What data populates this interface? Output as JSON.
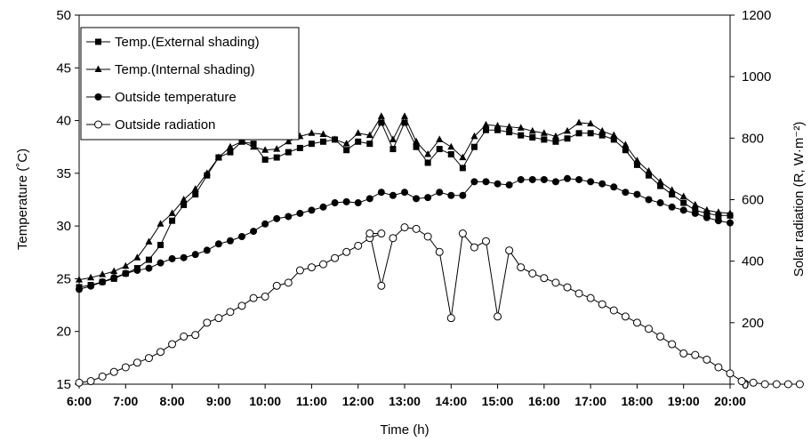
{
  "chart_data": {
    "type": "line",
    "xlabel": "Time (h)",
    "ylabel_left": "Temperature (˚C)",
    "ylabel_right": "Solar radiation (R, W·m⁻²)",
    "ylim_left": [
      15,
      50
    ],
    "ylim_right": [
      0,
      1200
    ],
    "yticks_left": [
      15,
      20,
      25,
      30,
      35,
      40,
      45,
      50
    ],
    "yticks_right": [
      0,
      200,
      400,
      600,
      800,
      1000,
      1200
    ],
    "x_ticks": [
      "6:00",
      "7:00",
      "8:00",
      "9:00",
      "10:00",
      "11:00",
      "12:00",
      "13:00",
      "14:00",
      "15:00",
      "16:00",
      "17:00",
      "18:00",
      "19:00",
      "20:00"
    ],
    "grid": false,
    "legend_position": "top-left",
    "x_start": "6:00",
    "x_interval_minutes": 15,
    "series": [
      {
        "name": "Temp.(External shading)",
        "axis": "left",
        "marker": "square-filled",
        "values": [
          24.2,
          24.4,
          24.7,
          25.0,
          25.5,
          26.0,
          26.8,
          28.2,
          30.5,
          32.0,
          33.0,
          34.8,
          36.5,
          37.0,
          38.0,
          37.8,
          36.3,
          36.5,
          37.0,
          37.4,
          37.8,
          38.0,
          38.2,
          37.2,
          38.0,
          37.8,
          39.8,
          37.3,
          39.8,
          37.5,
          36.0,
          37.3,
          36.8,
          35.5,
          37.5,
          39.1,
          39.1,
          38.9,
          38.6,
          38.4,
          38.2,
          38.0,
          38.3,
          38.8,
          38.8,
          38.6,
          38.2,
          37.2,
          35.8,
          34.8,
          33.8,
          33.0,
          32.2,
          31.5,
          31.2,
          31.0,
          31.0
        ]
      },
      {
        "name": "Temp.(Internal shading)",
        "axis": "left",
        "marker": "triangle-filled",
        "values": [
          24.9,
          25.1,
          25.4,
          25.7,
          26.2,
          27.0,
          28.5,
          30.2,
          31.2,
          32.5,
          33.5,
          35.0,
          36.5,
          37.5,
          38.0,
          37.5,
          37.2,
          37.3,
          38.0,
          38.5,
          38.8,
          38.7,
          38.2,
          37.8,
          38.8,
          38.6,
          40.4,
          38.2,
          40.4,
          38.0,
          36.8,
          38.2,
          37.5,
          36.5,
          38.5,
          39.6,
          39.5,
          39.4,
          39.3,
          39.0,
          38.8,
          38.5,
          39.0,
          39.8,
          39.7,
          39.0,
          38.6,
          37.7,
          36.2,
          35.2,
          34.2,
          33.4,
          32.8,
          32.0,
          31.5,
          31.3,
          31.2
        ]
      },
      {
        "name": "Outside temperature",
        "axis": "left",
        "marker": "circle-filled",
        "values": [
          24.0,
          24.3,
          24.7,
          25.1,
          25.5,
          25.8,
          26.0,
          26.5,
          26.9,
          27.0,
          27.3,
          27.7,
          28.3,
          28.6,
          29.0,
          29.5,
          30.2,
          30.7,
          30.9,
          31.2,
          31.5,
          31.8,
          32.2,
          32.3,
          32.2,
          32.6,
          33.2,
          32.9,
          33.2,
          32.6,
          32.7,
          33.2,
          32.9,
          32.9,
          34.2,
          34.2,
          34.0,
          33.9,
          34.4,
          34.4,
          34.4,
          34.2,
          34.5,
          34.4,
          34.2,
          34.0,
          33.7,
          33.2,
          33.0,
          32.5,
          32.2,
          31.8,
          31.5,
          31.2,
          30.8,
          30.5,
          30.3
        ]
      },
      {
        "name": "Outside radiation",
        "axis": "right",
        "marker": "circle-open",
        "values": [
          5,
          10,
          25,
          40,
          55,
          70,
          85,
          105,
          130,
          155,
          160,
          200,
          215,
          235,
          255,
          280,
          285,
          320,
          330,
          370,
          380,
          390,
          410,
          430,
          450,
          475,
          490,
          490,
          320,
          475,
          510,
          505,
          480,
          430,
          215,
          490,
          445,
          465,
          220,
          435,
          380,
          360,
          345,
          330,
          315,
          295,
          280,
          260,
          240,
          220,
          200,
          180,
          155,
          130,
          100,
          95,
          80,
          55,
          35,
          10,
          5,
          0,
          0,
          0,
          0
        ],
        "x_minutes": [
          0,
          15,
          30,
          45,
          60,
          75,
          90,
          105,
          120,
          135,
          150,
          165,
          180,
          195,
          210,
          225,
          240,
          255,
          270,
          285,
          300,
          315,
          330,
          345,
          360,
          375,
          390,
          375,
          390,
          405,
          420,
          435,
          450,
          465,
          480,
          495,
          510,
          525,
          540,
          555,
          570,
          585,
          600,
          615,
          630,
          645,
          660,
          675,
          690,
          705,
          720,
          735,
          750,
          765,
          780,
          795,
          810,
          825,
          840,
          855,
          870,
          885,
          900,
          915,
          930
        ]
      }
    ]
  }
}
